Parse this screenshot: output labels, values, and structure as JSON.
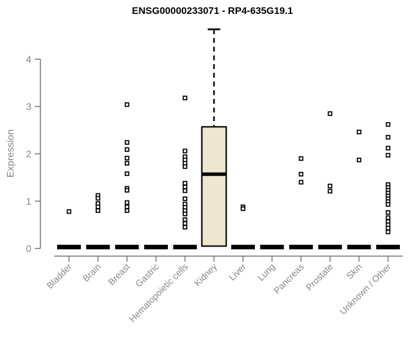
{
  "title": "ENSG00000233071 - RP4-635G19.1",
  "chart_data": {
    "type": "boxplot",
    "title": "ENSG00000233071 - RP4-635G19.1",
    "xlabel": "",
    "ylabel": "Expression",
    "ylim": [
      0,
      4.8
    ],
    "yticks": [
      "0",
      "1",
      "2",
      "3",
      "4"
    ],
    "grid": false,
    "legend": "none",
    "point_style": "open-square",
    "categories": [
      "Bladder",
      "Brain",
      "Breast",
      "Gastric",
      "Hematopoietic cells",
      "Kidney",
      "Liver",
      "Lung",
      "Pancreas",
      "Prostate",
      "Skin",
      "Unknown / Other"
    ],
    "series": [
      {
        "name": "Bladder",
        "zero_bar": true,
        "median": 0,
        "points": [
          0.78
        ]
      },
      {
        "name": "Brain",
        "zero_bar": true,
        "median": 0,
        "points": [
          1.12,
          1.06,
          0.95,
          0.88,
          0.8
        ]
      },
      {
        "name": "Breast",
        "zero_bar": true,
        "median": 0,
        "points": [
          3.04,
          2.24,
          2.09,
          1.91,
          1.8,
          1.58,
          1.27,
          1.23,
          0.97,
          0.88,
          0.8
        ]
      },
      {
        "name": "Gastric",
        "zero_bar": true,
        "median": 0,
        "points": []
      },
      {
        "name": "Hematopoietic cells",
        "zero_bar": true,
        "median": 0,
        "points": [
          3.18,
          2.06,
          1.94,
          1.87,
          1.8,
          1.73,
          1.38,
          1.3,
          1.22,
          1.05,
          0.94,
          0.87,
          0.8,
          0.73,
          0.61,
          0.53,
          0.45
        ]
      },
      {
        "name": "Kidney",
        "zero_bar": false,
        "box": {
          "whisker_high": 4.63,
          "q3": 2.57,
          "median": 1.57,
          "q1": 0.05,
          "whisker_low": 0.05
        },
        "points": []
      },
      {
        "name": "Liver",
        "zero_bar": true,
        "median": 0,
        "points": [
          0.88,
          0.84
        ]
      },
      {
        "name": "Lung",
        "zero_bar": true,
        "median": 0,
        "points": []
      },
      {
        "name": "Pancreas",
        "zero_bar": true,
        "median": 0,
        "points": [
          1.9,
          1.57,
          1.4
        ]
      },
      {
        "name": "Prostate",
        "zero_bar": true,
        "median": 0,
        "points": [
          2.85,
          1.32,
          1.21
        ]
      },
      {
        "name": "Skin",
        "zero_bar": true,
        "median": 0,
        "points": [
          2.46,
          1.87
        ]
      },
      {
        "name": "Unknown / Other",
        "zero_bar": true,
        "median": 0,
        "points": [
          2.62,
          2.35,
          2.12,
          1.97,
          1.35,
          1.29,
          1.23,
          1.17,
          1.11,
          1.05,
          0.99,
          0.93,
          0.76,
          0.65,
          0.57,
          0.5,
          0.43,
          0.35
        ]
      }
    ],
    "colors": {
      "box_fill": "#ECE7CD",
      "box_stroke": "#000000",
      "point_stroke": "#000000",
      "point_fill": "#ffffff",
      "zero_bar": "#000000",
      "axis": "#7d7d7d",
      "tick_label": "#878787",
      "title": "#000000"
    }
  }
}
